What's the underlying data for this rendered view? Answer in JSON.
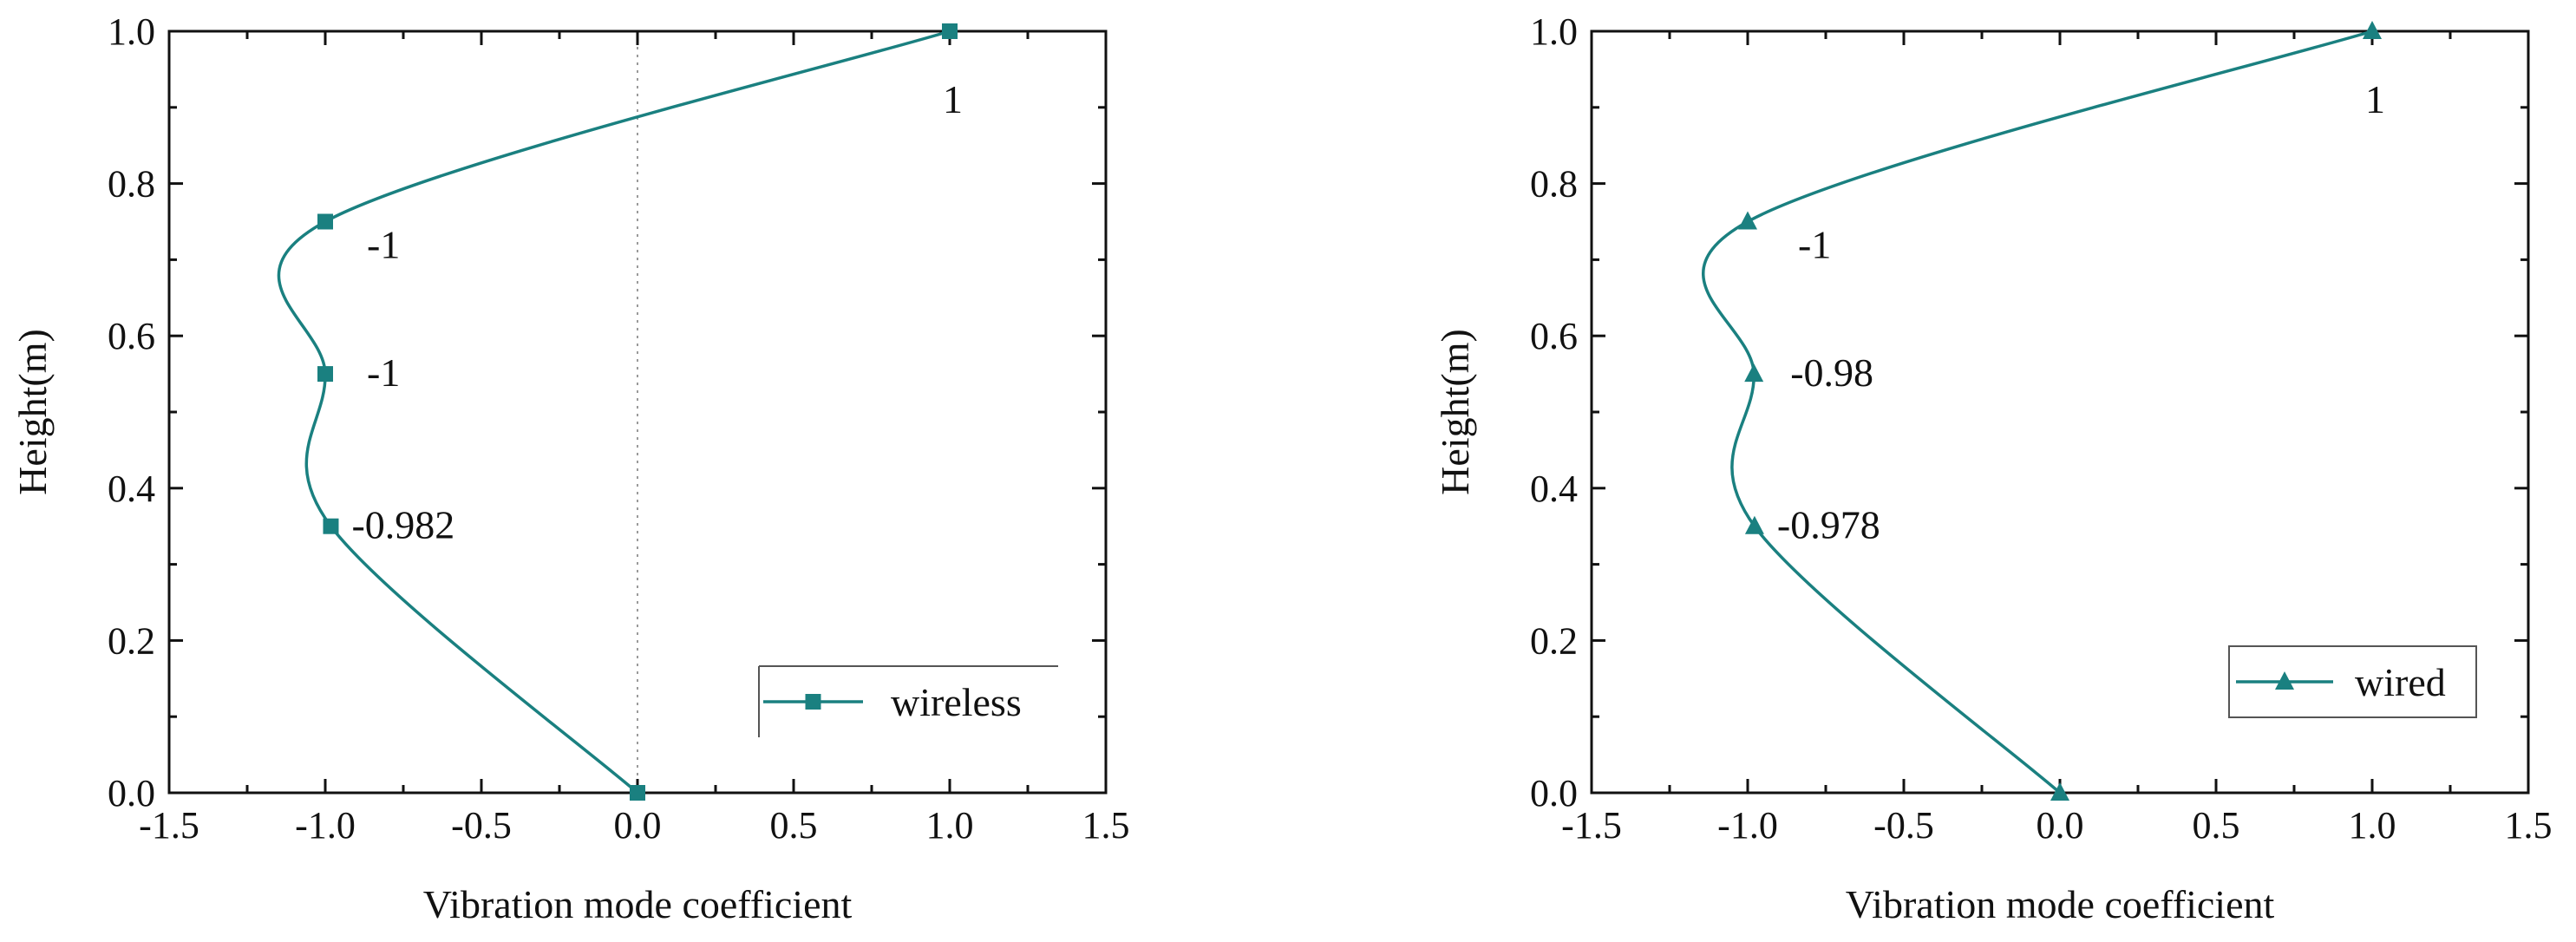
{
  "chart_data": [
    {
      "type": "line",
      "xlabel": "Vibration mode coefficient",
      "ylabel": "Height(m)",
      "xlim": [
        -1.5,
        1.5
      ],
      "ylim": [
        0.0,
        1.0
      ],
      "xticks": [
        "-1.5",
        "-1.0",
        "-0.5",
        "0.0",
        "0.5",
        "1.0",
        "1.5"
      ],
      "yticks": [
        "0.0",
        "0.2",
        "0.4",
        "0.6",
        "0.8",
        "1.0"
      ],
      "zero_reference_line": true,
      "color": "#1a8080",
      "series": [
        {
          "name": "wireless",
          "marker": "square",
          "points": [
            {
              "x": 0.0,
              "y": 0.0
            },
            {
              "x": -0.982,
              "y": 0.35
            },
            {
              "x": -1.0,
              "y": 0.55
            },
            {
              "x": -1.0,
              "y": 0.75
            },
            {
              "x": 1.0,
              "y": 1.0
            }
          ]
        }
      ],
      "annotations": [
        "-0.982",
        "-1",
        "-1",
        "1"
      ],
      "legend": {
        "position": "bottom-right",
        "entry": "wireless"
      }
    },
    {
      "type": "line",
      "xlabel": "Vibration mode coefficient",
      "ylabel": "Height(m)",
      "xlim": [
        -1.5,
        1.5
      ],
      "ylim": [
        0.0,
        1.0
      ],
      "xticks": [
        "-1.5",
        "-1.0",
        "-0.5",
        "0.0",
        "0.5",
        "1.0",
        "1.5"
      ],
      "yticks": [
        "0.0",
        "0.2",
        "0.4",
        "0.6",
        "0.8",
        "1.0"
      ],
      "zero_reference_line": false,
      "color": "#1a8080",
      "series": [
        {
          "name": "wired",
          "marker": "triangle",
          "points": [
            {
              "x": 0.0,
              "y": 0.0
            },
            {
              "x": -0.978,
              "y": 0.35
            },
            {
              "x": -0.98,
              "y": 0.55
            },
            {
              "x": -1.0,
              "y": 0.75
            },
            {
              "x": 1.0,
              "y": 1.0
            }
          ]
        }
      ],
      "annotations": [
        "-0.978",
        "-0.98",
        "-1",
        "1"
      ],
      "legend": {
        "position": "bottom-right",
        "entry": "wired"
      }
    }
  ]
}
